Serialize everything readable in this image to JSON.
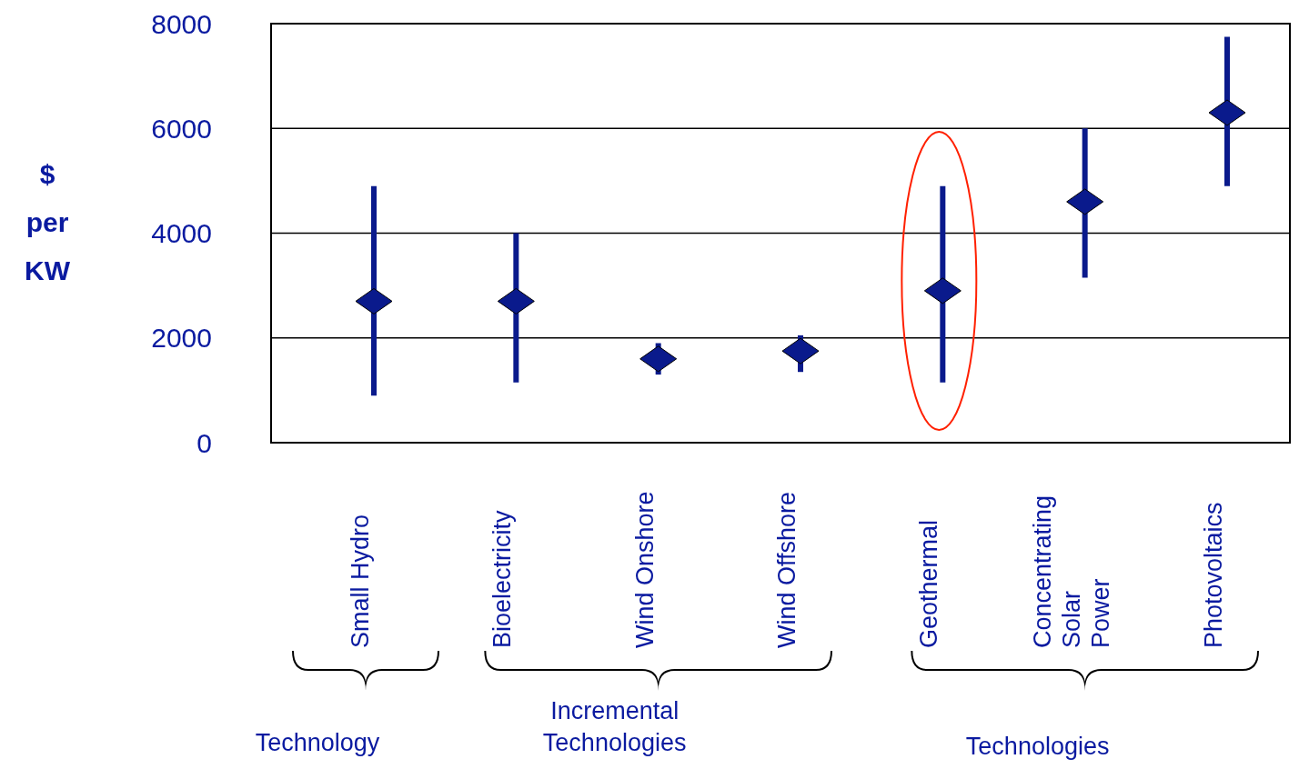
{
  "chart_data": {
    "type": "scatter",
    "ylabel": "$ per KW",
    "categories": [
      "Small Hydro",
      "Bioelectricity",
      "Wind Onshore",
      "Wind Offshore",
      "Geothermal",
      "Concentrating Solar Power",
      "Photovoltaics"
    ],
    "series": [
      {
        "color": "#0a1a8c",
        "values": [
          2700,
          2700,
          1600,
          1750,
          2900,
          4600,
          6300
        ],
        "errors": [
          [
            900,
            4900
          ],
          [
            1150,
            4000
          ],
          [
            1300,
            1900
          ],
          [
            1350,
            2050
          ],
          [
            1150,
            4900
          ],
          [
            3150,
            6000
          ],
          [
            4900,
            7750
          ]
        ]
      }
    ],
    "marker": "diamond",
    "ylim": [
      0,
      8000
    ],
    "yticks": [
      0,
      2000,
      4000,
      6000,
      8000
    ],
    "grid": "y",
    "annotations": [
      "Technology",
      "Incremental Technologies",
      "Technologies"
    ]
  }
}
